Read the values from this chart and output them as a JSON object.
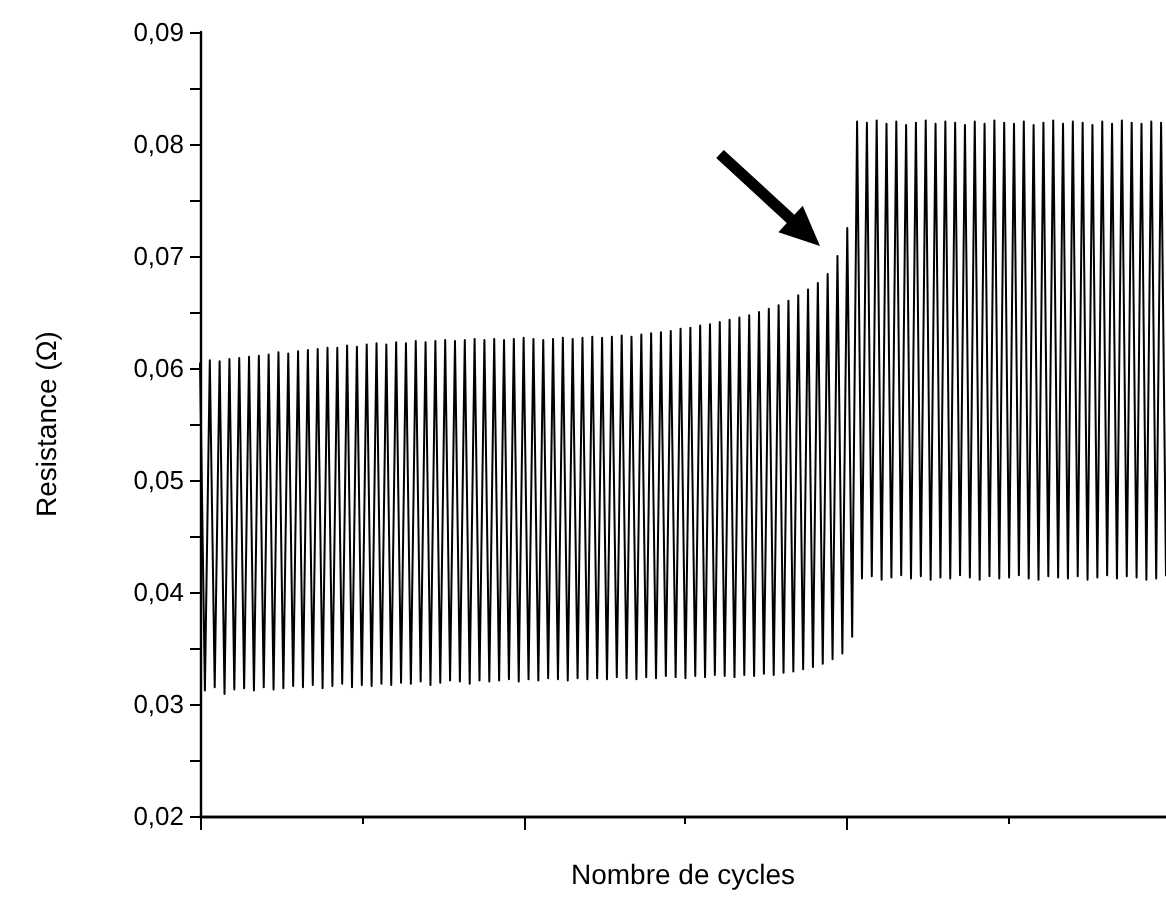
{
  "chart_data": {
    "type": "line",
    "xlabel": "Nombre de cycles",
    "ylabel": "Resistance (Ω)",
    "tick_labels": "y",
    "line_style": "solid",
    "ylim": [
      0.02,
      0.09
    ],
    "yticks": [
      {
        "value": 0.02,
        "label": "0,02"
      },
      {
        "value": 0.025,
        "label": null
      },
      {
        "value": 0.03,
        "label": "0,03"
      },
      {
        "value": 0.035,
        "label": null
      },
      {
        "value": 0.04,
        "label": "0,04"
      },
      {
        "value": 0.045,
        "label": null
      },
      {
        "value": 0.05,
        "label": "0,05"
      },
      {
        "value": 0.055,
        "label": null
      },
      {
        "value": 0.06,
        "label": "0,06"
      },
      {
        "value": 0.065,
        "label": null
      },
      {
        "value": 0.07,
        "label": "0,07"
      },
      {
        "value": 0.075,
        "label": null
      },
      {
        "value": 0.08,
        "label": "0,08"
      },
      {
        "value": 0.085,
        "label": null
      },
      {
        "value": 0.09,
        "label": "0,09"
      }
    ],
    "categories": [
      null,
      null,
      null,
      null,
      null,
      null,
      null,
      null,
      null,
      null,
      null,
      null,
      null,
      null,
      null,
      null,
      null,
      null,
      null,
      null,
      null,
      null,
      null,
      null,
      null,
      null,
      null,
      null,
      null,
      null,
      null,
      null,
      null,
      null,
      null,
      null,
      null,
      null,
      null,
      null,
      null,
      null,
      null,
      null,
      null,
      null,
      null,
      null,
      null,
      null,
      null,
      null,
      null,
      null,
      null,
      null,
      null,
      null,
      null,
      null,
      null,
      null,
      null,
      null,
      null,
      null,
      null,
      null,
      null,
      null,
      null,
      null,
      null,
      null,
      null,
      null,
      null,
      null,
      null,
      null,
      null,
      null,
      null,
      null,
      null,
      null,
      null,
      null,
      null,
      null,
      null,
      null,
      null,
      null,
      null,
      null,
      null,
      null,
      null,
      null,
      null,
      null,
      null,
      null,
      null,
      null,
      null,
      null,
      null,
      null,
      null,
      null,
      null,
      null,
      null,
      null,
      null,
      null,
      null,
      null,
      null,
      null,
      null,
      null,
      null,
      null,
      null,
      null,
      null,
      null,
      null,
      null,
      null,
      null,
      null,
      null,
      null,
      null,
      null,
      null,
      null,
      null,
      null,
      null,
      null,
      null,
      null,
      null,
      null,
      null,
      null,
      null,
      null,
      null,
      null,
      null,
      null,
      null,
      null,
      null,
      null,
      null,
      null,
      null,
      null,
      null,
      null,
      null,
      null,
      null,
      null,
      null,
      null,
      null,
      null,
      null,
      null,
      null,
      null,
      null,
      null,
      null,
      null,
      null,
      null,
      null,
      null,
      null,
      null,
      null,
      null,
      null,
      null,
      null,
      null,
      null,
      null,
      null
    ],
    "series": [
      {
        "color": "#000000",
        "values": [
          0.0605,
          0.0312,
          0.0607,
          0.0315,
          0.0606,
          0.0309,
          0.0608,
          0.0313,
          0.0609,
          0.0314,
          0.061,
          0.0312,
          0.0611,
          0.0315,
          0.0612,
          0.0313,
          0.0614,
          0.0314,
          0.0613,
          0.0316,
          0.0615,
          0.0315,
          0.0616,
          0.0317,
          0.0617,
          0.0314,
          0.0618,
          0.0316,
          0.0618,
          0.0318,
          0.062,
          0.0315,
          0.0619,
          0.0317,
          0.0621,
          0.0316,
          0.0622,
          0.0318,
          0.0621,
          0.0317,
          0.0623,
          0.0319,
          0.0622,
          0.0318,
          0.0624,
          0.032,
          0.0623,
          0.0317,
          0.0624,
          0.0319,
          0.0625,
          0.0321,
          0.0624,
          0.032,
          0.0625,
          0.0318,
          0.0626,
          0.0321,
          0.0625,
          0.032,
          0.0626,
          0.0321,
          0.0625,
          0.0322,
          0.0626,
          0.032,
          0.0627,
          0.0322,
          0.0626,
          0.0321,
          0.0625,
          0.0323,
          0.0626,
          0.0322,
          0.0627,
          0.0321,
          0.0626,
          0.0323,
          0.0627,
          0.0322,
          0.0628,
          0.0323,
          0.0627,
          0.0322,
          0.0628,
          0.0324,
          0.0629,
          0.0323,
          0.0628,
          0.0322,
          0.063,
          0.0324,
          0.0631,
          0.0323,
          0.0632,
          0.0325,
          0.0633,
          0.0324,
          0.0635,
          0.0323,
          0.0636,
          0.0325,
          0.0638,
          0.0324,
          0.0639,
          0.0326,
          0.0641,
          0.0325,
          0.0643,
          0.0324,
          0.0645,
          0.0326,
          0.0647,
          0.0325,
          0.065,
          0.0327,
          0.0653,
          0.0326,
          0.0656,
          0.0328,
          0.066,
          0.0329,
          0.0665,
          0.0331,
          0.067,
          0.0333,
          0.0676,
          0.0336,
          0.0684,
          0.034,
          0.07,
          0.0345,
          0.0725,
          0.036,
          0.082,
          0.0412,
          0.0819,
          0.0414,
          0.0821,
          0.0411,
          0.0818,
          0.0413,
          0.082,
          0.0415,
          0.0817,
          0.0412,
          0.0819,
          0.0414,
          0.0821,
          0.0411,
          0.0818,
          0.0413,
          0.082,
          0.0412,
          0.0819,
          0.0415,
          0.0817,
          0.0413,
          0.082,
          0.0411,
          0.0818,
          0.0414,
          0.0821,
          0.0412,
          0.0819,
          0.0413,
          0.0818,
          0.0415,
          0.082,
          0.0412,
          0.0817,
          0.0411,
          0.0819,
          0.0414,
          0.0821,
          0.0413,
          0.0818,
          0.0412,
          0.082,
          0.0414,
          0.0819,
          0.0411,
          0.0817,
          0.0413,
          0.082,
          0.0415,
          0.0818,
          0.0412,
          0.0821,
          0.0414,
          0.0819,
          0.0413,
          0.0818,
          0.0411,
          0.082,
          0.0412,
          0.0819,
          0.0414
        ]
      }
    ]
  }
}
